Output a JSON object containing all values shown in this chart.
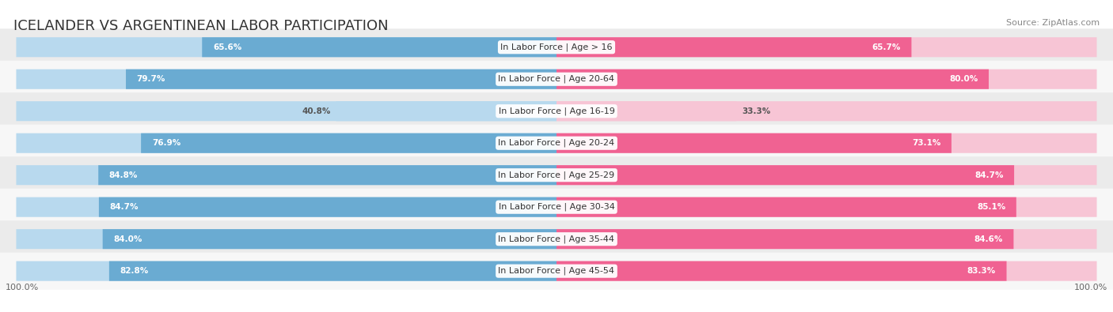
{
  "title": "ICELANDER VS ARGENTINEAN LABOR PARTICIPATION",
  "source": "Source: ZipAtlas.com",
  "categories": [
    "In Labor Force | Age > 16",
    "In Labor Force | Age 20-64",
    "In Labor Force | Age 16-19",
    "In Labor Force | Age 20-24",
    "In Labor Force | Age 25-29",
    "In Labor Force | Age 30-34",
    "In Labor Force | Age 35-44",
    "In Labor Force | Age 45-54"
  ],
  "icelander_values": [
    65.6,
    79.7,
    40.8,
    76.9,
    84.8,
    84.7,
    84.0,
    82.8
  ],
  "argentinean_values": [
    65.7,
    80.0,
    33.3,
    73.1,
    84.7,
    85.1,
    84.6,
    83.3
  ],
  "icelander_color": "#6aabd2",
  "icelander_light_color": "#b8d9ee",
  "argentinean_color": "#f06292",
  "argentinean_light_color": "#f7c5d5",
  "row_bg_even": "#ebebeb",
  "row_bg_odd": "#f7f7f7",
  "max_value": 100.0,
  "title_fontsize": 13,
  "label_fontsize": 8.0,
  "value_fontsize": 7.5,
  "legend_fontsize": 9,
  "axis_label_fontsize": 8
}
